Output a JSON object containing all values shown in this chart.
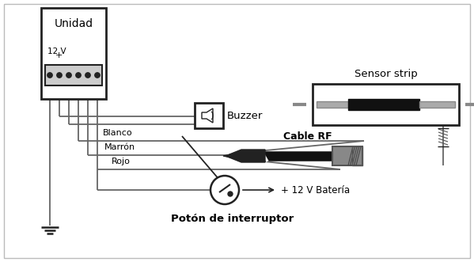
{
  "labels": {
    "unidad": "Unidad",
    "12v": "12 V",
    "buzzer": "Buzzer",
    "sensor_strip": "Sensor strip",
    "cable_rf": "Cable RF",
    "blanco": "Blanco",
    "marron": "Marrón",
    "rojo": "Rojo",
    "bateria": "+ 12 V Batería",
    "poton": "Potón de interruptor"
  },
  "colors": {
    "black": "#111111",
    "dark_gray": "#444444",
    "mid_gray": "#888888",
    "light_gray": "#bbbbbb",
    "border": "#222222",
    "wire": "#666666",
    "bg": "#ffffff",
    "outer_border": "#cccccc"
  }
}
